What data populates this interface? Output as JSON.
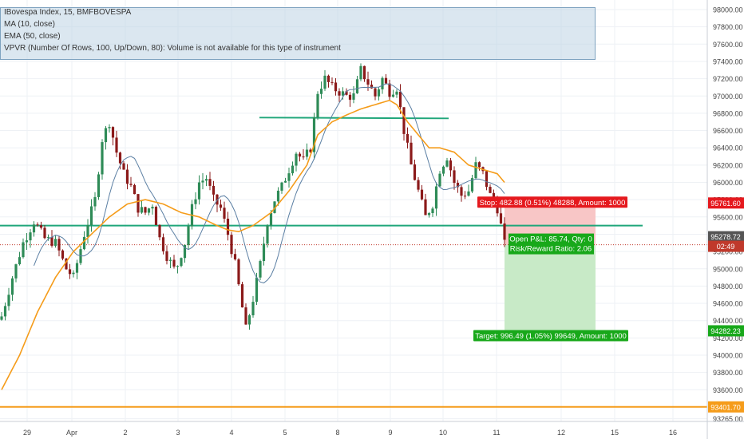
{
  "legend": {
    "line1": "IBovespa Index, 15, BMFBOVESPA",
    "line2": "MA (10, close)",
    "line3": "EMA (50, close)",
    "line4": "VPVR (Number Of Rows, 100, Up/Down, 80): Volume is not available for this type of instrument"
  },
  "colors": {
    "up": "#26a69a",
    "down": "#ef5350",
    "candle_up_fill": "#2e8b57",
    "candle_down_fill": "#8b1a1a",
    "ma": "#5b7fa3",
    "ema": "#f59c1a",
    "trendline": "#1fa67a",
    "support": "#f59c1a",
    "stop_zone": "#f8c6c6",
    "target_zone": "#c8eac7",
    "stop_label": "#e5191e",
    "target_label": "#18a81a",
    "price_label": "#555555"
  },
  "chart_data": {
    "type": "candlestick",
    "symbol": "IBovespa Index",
    "interval": "15",
    "exchange": "BMFBOVESPA",
    "ylim": [
      93180,
      98100
    ],
    "y_ticks": [
      "98000.00",
      "97800.00",
      "97600.00",
      "97400.00",
      "97200.00",
      "97000.00",
      "96800.00",
      "96600.00",
      "96400.00",
      "96200.00",
      "96000.00",
      "95800.00",
      "95600.00",
      "95400.00",
      "95200.00",
      "95000.00",
      "94800.00",
      "94600.00",
      "94400.00",
      "94200.00",
      "94000.00",
      "93800.00",
      "93600.00",
      "93400.00",
      "93265.00"
    ],
    "x_ticks": [
      "29",
      "Apr",
      "2",
      "3",
      "4",
      "5",
      "8",
      "9",
      "10",
      "11",
      "12",
      "15",
      "16"
    ],
    "series": [
      {
        "name": "MA (10, close)"
      },
      {
        "name": "EMA (50, close)"
      }
    ],
    "price_path": [
      [
        0,
        94450
      ],
      [
        3,
        94900
      ],
      [
        6,
        95300
      ],
      [
        9,
        95550
      ],
      [
        12,
        95350
      ],
      [
        15,
        95300
      ],
      [
        18,
        95000
      ],
      [
        20,
        94900
      ],
      [
        23,
        95400
      ],
      [
        26,
        95800
      ],
      [
        28,
        96500
      ],
      [
        30,
        96700
      ],
      [
        32,
        96350
      ],
      [
        34,
        96100
      ],
      [
        36,
        95950
      ],
      [
        38,
        95700
      ],
      [
        40,
        95650
      ],
      [
        42,
        95750
      ],
      [
        44,
        95350
      ],
      [
        46,
        95150
      ],
      [
        48,
        95000
      ],
      [
        49,
        95050
      ],
      [
        51,
        95300
      ],
      [
        53,
        95700
      ],
      [
        55,
        96000
      ],
      [
        57,
        96050
      ],
      [
        59,
        95800
      ],
      [
        61,
        95700
      ],
      [
        63,
        95400
      ],
      [
        65,
        95050
      ],
      [
        67,
        94550
      ],
      [
        68,
        94300
      ],
      [
        70,
        94650
      ],
      [
        72,
        95050
      ],
      [
        74,
        95550
      ],
      [
        76,
        95800
      ],
      [
        78,
        95950
      ],
      [
        80,
        96150
      ],
      [
        82,
        96350
      ],
      [
        84,
        96250
      ],
      [
        86,
        96400
      ],
      [
        88,
        97050
      ],
      [
        90,
        97200
      ],
      [
        92,
        97100
      ],
      [
        94,
        97050
      ],
      [
        96,
        97000
      ],
      [
        98,
        97000
      ],
      [
        100,
        97300
      ],
      [
        102,
        97150
      ],
      [
        104,
        97000
      ],
      [
        106,
        97200
      ],
      [
        108,
        97050
      ],
      [
        110,
        97100
      ],
      [
        112,
        96600
      ],
      [
        114,
        96200
      ],
      [
        116,
        95900
      ],
      [
        118,
        95600
      ],
      [
        120,
        95750
      ],
      [
        122,
        96150
      ],
      [
        124,
        96300
      ],
      [
        126,
        96000
      ],
      [
        128,
        95850
      ],
      [
        130,
        95900
      ],
      [
        132,
        96200
      ],
      [
        134,
        96100
      ],
      [
        136,
        95850
      ],
      [
        138,
        95700
      ],
      [
        139,
        95500
      ],
      [
        140,
        95280
      ]
    ],
    "ema_path": [
      [
        0,
        93600
      ],
      [
        5,
        94000
      ],
      [
        10,
        94500
      ],
      [
        15,
        94900
      ],
      [
        20,
        95200
      ],
      [
        25,
        95400
      ],
      [
        30,
        95600
      ],
      [
        35,
        95750
      ],
      [
        40,
        95800
      ],
      [
        45,
        95750
      ],
      [
        50,
        95650
      ],
      [
        55,
        95600
      ],
      [
        60,
        95500
      ],
      [
        63,
        95450
      ],
      [
        66,
        95430
      ],
      [
        70,
        95500
      ],
      [
        75,
        95650
      ],
      [
        80,
        95900
      ],
      [
        85,
        96200
      ],
      [
        88,
        96550
      ],
      [
        92,
        96700
      ],
      [
        96,
        96780
      ],
      [
        100,
        96850
      ],
      [
        104,
        96900
      ],
      [
        108,
        96950
      ],
      [
        110,
        96900
      ],
      [
        113,
        96700
      ],
      [
        116,
        96550
      ],
      [
        119,
        96400
      ],
      [
        122,
        96400
      ],
      [
        126,
        96350
      ],
      [
        130,
        96200
      ],
      [
        134,
        96150
      ],
      [
        138,
        96100
      ],
      [
        140,
        96000
      ]
    ],
    "lines": {
      "support": 95500,
      "resistance": 96750,
      "bottom": 93401.7
    },
    "price_labels": {
      "stop": "95761.60",
      "current": "95278.72",
      "countdown": "02:49",
      "target": "94282.23",
      "bottom": "93401.70"
    },
    "position": {
      "stop_text": "Stop: 482.88 (0.51%) 48288, Amount: 1000",
      "pnl_text": "Open P&L: 85.74, Qty: 0",
      "rr_text": "Risk/Reward Ratio: 2.06",
      "target_text": "Target: 996.49 (1.05%) 99649, Amount: 1000",
      "entry": 95278.72,
      "stop": 95761.6,
      "target": 94282.23
    }
  }
}
